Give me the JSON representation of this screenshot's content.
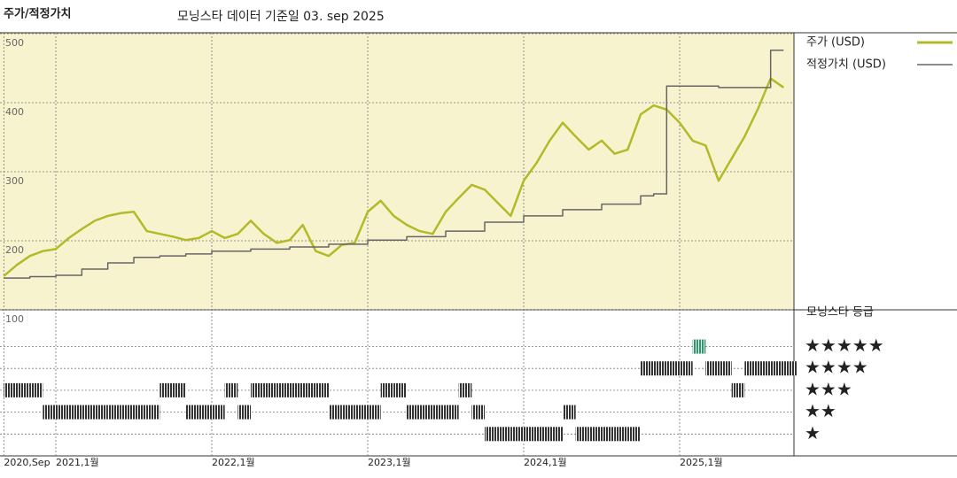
{
  "chart_data": [
    {
      "type": "line",
      "title": "주가/적정가치",
      "subtitle": "모닝스타 데이터 기준일 03. sep 2025",
      "x": [
        "2020-09",
        "2020-10",
        "2020-11",
        "2020-12",
        "2021-01",
        "2021-02",
        "2021-03",
        "2021-04",
        "2021-05",
        "2021-06",
        "2021-07",
        "2021-08",
        "2021-09",
        "2021-10",
        "2021-11",
        "2021-12",
        "2022-01",
        "2022-02",
        "2022-03",
        "2022-04",
        "2022-05",
        "2022-06",
        "2022-07",
        "2022-08",
        "2022-09",
        "2022-10",
        "2022-11",
        "2022-12",
        "2023-01",
        "2023-02",
        "2023-03",
        "2023-04",
        "2023-05",
        "2023-06",
        "2023-07",
        "2023-08",
        "2023-09",
        "2023-10",
        "2023-11",
        "2023-12",
        "2024-01",
        "2024-02",
        "2024-03",
        "2024-04",
        "2024-05",
        "2024-06",
        "2024-07",
        "2024-08",
        "2024-09",
        "2024-10",
        "2024-11",
        "2024-12",
        "2025-01",
        "2025-02",
        "2025-03",
        "2025-04",
        "2025-05",
        "2025-06",
        "2025-07",
        "2025-08",
        "2025-09"
      ],
      "xticks": [
        {
          "value": "2020-09",
          "label": "2020,Sep"
        },
        {
          "value": "2021-01",
          "label": "2021,1월"
        },
        {
          "value": "2022-01",
          "label": "2022,1월"
        },
        {
          "value": "2023-01",
          "label": "2023,1월"
        },
        {
          "value": "2024-01",
          "label": "2024,1월"
        },
        {
          "value": "2025-01",
          "label": "2025,1월"
        }
      ],
      "ylim": [
        100,
        500
      ],
      "yticks": [
        100,
        200,
        300,
        400,
        500
      ],
      "grid": true,
      "background": "#f8f3cf",
      "series": [
        {
          "name": "주가 (USD)",
          "color": "#b3ba2a",
          "values": [
            149,
            165,
            178,
            185,
            188,
            204,
            217,
            229,
            236,
            240,
            242,
            214,
            210,
            206,
            201,
            204,
            214,
            204,
            210,
            229,
            210,
            197,
            201,
            223,
            185,
            178,
            194,
            197,
            242,
            258,
            236,
            223,
            214,
            210,
            242,
            262,
            281,
            274,
            255,
            236,
            287,
            313,
            345,
            371,
            351,
            332,
            345,
            326,
            332,
            383,
            396,
            390,
            371,
            345,
            338,
            287,
            319,
            351,
            390,
            435,
            422
          ]
        },
        {
          "name": "적정가치 (USD)",
          "color": "#666666",
          "step": true,
          "values": [
            146,
            146,
            148,
            148,
            150,
            150,
            159,
            159,
            168,
            168,
            176,
            176,
            178,
            178,
            181,
            181,
            185,
            185,
            185,
            188,
            188,
            188,
            191,
            191,
            191,
            195,
            195,
            195,
            201,
            201,
            201,
            206,
            206,
            206,
            214,
            214,
            214,
            227,
            227,
            227,
            236,
            236,
            236,
            245,
            245,
            245,
            253,
            253,
            253,
            265,
            268,
            424,
            424,
            424,
            424,
            422,
            422,
            422,
            422,
            476,
            476
          ]
        }
      ]
    },
    {
      "type": "rating",
      "title": "모닝스타 등급",
      "x": [
        "2020-09",
        "2020-10",
        "2020-11",
        "2020-12",
        "2021-01",
        "2021-02",
        "2021-03",
        "2021-04",
        "2021-05",
        "2021-06",
        "2021-07",
        "2021-08",
        "2021-09",
        "2021-10",
        "2021-11",
        "2021-12",
        "2022-01",
        "2022-02",
        "2022-03",
        "2022-04",
        "2022-05",
        "2022-06",
        "2022-07",
        "2022-08",
        "2022-09",
        "2022-10",
        "2022-11",
        "2022-12",
        "2023-01",
        "2023-02",
        "2023-03",
        "2023-04",
        "2023-05",
        "2023-06",
        "2023-07",
        "2023-08",
        "2023-09",
        "2023-10",
        "2023-11",
        "2023-12",
        "2024-01",
        "2024-02",
        "2024-03",
        "2024-04",
        "2024-05",
        "2024-06",
        "2024-07",
        "2024-08",
        "2024-09",
        "2024-10",
        "2024-11",
        "2024-12",
        "2025-01",
        "2025-02",
        "2025-03",
        "2025-04",
        "2025-05",
        "2025-06",
        "2025-07",
        "2025-08",
        "2025-09"
      ],
      "values": [
        3,
        3,
        3,
        2,
        2,
        2,
        2,
        2,
        2,
        2,
        2,
        2,
        3,
        3,
        2,
        2,
        2,
        3,
        2,
        3,
        3,
        3,
        3,
        3,
        3,
        2,
        2,
        2,
        2,
        3,
        3,
        2,
        2,
        2,
        2,
        3,
        2,
        1,
        1,
        1,
        1,
        1,
        1,
        2,
        1,
        1,
        1,
        1,
        1,
        4,
        4,
        4,
        4,
        5,
        4,
        4,
        3,
        4,
        4,
        4,
        4
      ],
      "ylim": [
        0,
        6.6
      ],
      "yticks": [
        {
          "value": 5,
          "label": "★★★★★"
        },
        {
          "value": 4,
          "label": "★★★★"
        },
        {
          "value": 3,
          "label": "★★★"
        },
        {
          "value": 2,
          "label": "★★"
        },
        {
          "value": 1,
          "label": "★"
        }
      ],
      "color": "#333333",
      "top_color": "#3f8f70"
    }
  ]
}
